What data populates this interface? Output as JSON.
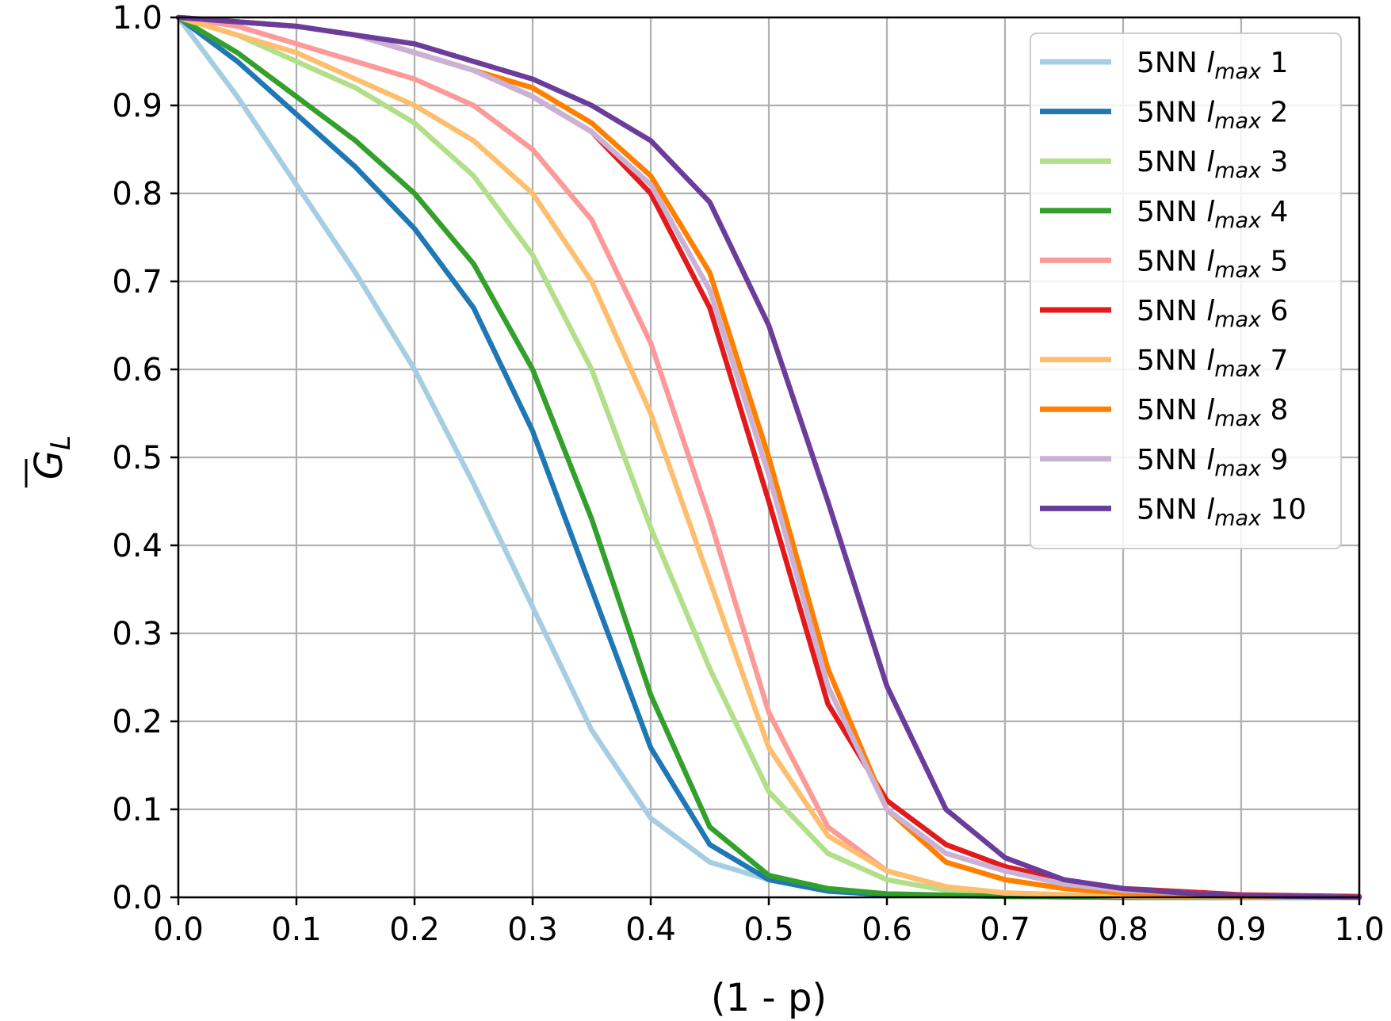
{
  "chart_data": {
    "type": "line",
    "xlabel": "(1 - p)",
    "ylabel_main": "G",
    "ylabel_sub": "L",
    "xlim": [
      0.0,
      1.0
    ],
    "ylim": [
      0.0,
      1.0
    ],
    "grid": true,
    "legend_position": "top-right",
    "x_ticks": [
      "0.0",
      "0.1",
      "0.2",
      "0.3",
      "0.4",
      "0.5",
      "0.6",
      "0.7",
      "0.8",
      "0.9",
      "1.0"
    ],
    "y_ticks": [
      "0.0",
      "0.1",
      "0.2",
      "0.3",
      "0.4",
      "0.5",
      "0.6",
      "0.7",
      "0.8",
      "0.9",
      "1.0"
    ],
    "series": [
      {
        "name_prefix": "5NN ",
        "name_main": "l",
        "name_sub": "max",
        "name_suffix": " 1",
        "color": "#a6cee3",
        "x": [
          0,
          0.05,
          0.1,
          0.15,
          0.2,
          0.25,
          0.3,
          0.35,
          0.4,
          0.45,
          0.5,
          0.55,
          0.6,
          0.7,
          0.8,
          1.0
        ],
        "y": [
          1.0,
          0.91,
          0.81,
          0.71,
          0.6,
          0.47,
          0.33,
          0.19,
          0.09,
          0.04,
          0.02,
          0.008,
          0.004,
          0.001,
          0.0,
          0.0
        ]
      },
      {
        "name_prefix": "5NN ",
        "name_main": "l",
        "name_sub": "max",
        "name_suffix": " 2",
        "color": "#1f78b4",
        "x": [
          0,
          0.05,
          0.1,
          0.15,
          0.2,
          0.25,
          0.3,
          0.35,
          0.4,
          0.45,
          0.5,
          0.55,
          0.6,
          0.7,
          0.8,
          1.0
        ],
        "y": [
          1.0,
          0.95,
          0.89,
          0.83,
          0.76,
          0.67,
          0.53,
          0.35,
          0.17,
          0.06,
          0.02,
          0.007,
          0.003,
          0.001,
          0.0,
          0.0
        ]
      },
      {
        "name_prefix": "5NN ",
        "name_main": "l",
        "name_sub": "max",
        "name_suffix": " 3",
        "color": "#b2df8a",
        "x": [
          0,
          0.05,
          0.1,
          0.15,
          0.2,
          0.25,
          0.3,
          0.35,
          0.4,
          0.45,
          0.5,
          0.55,
          0.6,
          0.65,
          0.7,
          0.8,
          1.0
        ],
        "y": [
          1.0,
          0.98,
          0.95,
          0.92,
          0.88,
          0.82,
          0.73,
          0.6,
          0.42,
          0.26,
          0.12,
          0.05,
          0.02,
          0.008,
          0.004,
          0.001,
          0.0
        ]
      },
      {
        "name_prefix": "5NN ",
        "name_main": "l",
        "name_sub": "max",
        "name_suffix": " 4",
        "color": "#33a02c",
        "x": [
          0,
          0.05,
          0.1,
          0.15,
          0.2,
          0.25,
          0.3,
          0.35,
          0.4,
          0.45,
          0.5,
          0.55,
          0.6,
          0.7,
          0.8,
          1.0
        ],
        "y": [
          1.0,
          0.96,
          0.91,
          0.86,
          0.8,
          0.72,
          0.6,
          0.43,
          0.23,
          0.08,
          0.025,
          0.01,
          0.004,
          0.001,
          0.0,
          0.0
        ]
      },
      {
        "name_prefix": "5NN ",
        "name_main": "l",
        "name_sub": "max",
        "name_suffix": " 5",
        "color": "#fb9a99",
        "x": [
          0,
          0.05,
          0.1,
          0.15,
          0.2,
          0.25,
          0.3,
          0.35,
          0.4,
          0.45,
          0.5,
          0.55,
          0.6,
          0.65,
          0.7,
          0.8,
          1.0
        ],
        "y": [
          1.0,
          0.99,
          0.97,
          0.95,
          0.93,
          0.9,
          0.85,
          0.77,
          0.63,
          0.43,
          0.21,
          0.08,
          0.03,
          0.012,
          0.005,
          0.001,
          0.0
        ]
      },
      {
        "name_prefix": "5NN ",
        "name_main": "l",
        "name_sub": "max",
        "name_suffix": " 6",
        "color": "#e31a1c",
        "x": [
          0,
          0.05,
          0.1,
          0.15,
          0.2,
          0.25,
          0.3,
          0.35,
          0.4,
          0.45,
          0.5,
          0.55,
          0.6,
          0.65,
          0.7,
          0.75,
          0.8,
          0.9,
          1.0
        ],
        "y": [
          1.0,
          0.995,
          0.99,
          0.98,
          0.96,
          0.94,
          0.91,
          0.87,
          0.8,
          0.67,
          0.45,
          0.22,
          0.11,
          0.06,
          0.035,
          0.02,
          0.01,
          0.003,
          0.001
        ]
      },
      {
        "name_prefix": "5NN ",
        "name_main": "l",
        "name_sub": "max",
        "name_suffix": " 7",
        "color": "#fdbf6f",
        "x": [
          0,
          0.05,
          0.1,
          0.15,
          0.2,
          0.25,
          0.3,
          0.35,
          0.4,
          0.45,
          0.5,
          0.55,
          0.6,
          0.65,
          0.7,
          0.8,
          1.0
        ],
        "y": [
          1.0,
          0.98,
          0.96,
          0.93,
          0.9,
          0.86,
          0.8,
          0.7,
          0.55,
          0.36,
          0.17,
          0.07,
          0.03,
          0.012,
          0.005,
          0.001,
          0.0
        ]
      },
      {
        "name_prefix": "5NN ",
        "name_main": "l",
        "name_sub": "max",
        "name_suffix": " 8",
        "color": "#ff7f00",
        "x": [
          0,
          0.05,
          0.1,
          0.15,
          0.2,
          0.25,
          0.3,
          0.35,
          0.4,
          0.45,
          0.5,
          0.55,
          0.6,
          0.65,
          0.7,
          0.75,
          0.8,
          0.9,
          1.0
        ],
        "y": [
          1.0,
          0.995,
          0.99,
          0.98,
          0.96,
          0.94,
          0.92,
          0.88,
          0.82,
          0.71,
          0.5,
          0.26,
          0.1,
          0.04,
          0.02,
          0.01,
          0.005,
          0.001,
          0.0
        ]
      },
      {
        "name_prefix": "5NN ",
        "name_main": "l",
        "name_sub": "max",
        "name_suffix": " 9",
        "color": "#cab2d6",
        "x": [
          0,
          0.05,
          0.1,
          0.15,
          0.2,
          0.25,
          0.3,
          0.35,
          0.4,
          0.45,
          0.5,
          0.55,
          0.6,
          0.65,
          0.7,
          0.75,
          0.8,
          0.9,
          1.0
        ],
        "y": [
          1.0,
          0.995,
          0.99,
          0.98,
          0.96,
          0.94,
          0.91,
          0.87,
          0.81,
          0.69,
          0.48,
          0.24,
          0.1,
          0.05,
          0.03,
          0.015,
          0.008,
          0.002,
          0.0
        ]
      },
      {
        "name_prefix": "5NN ",
        "name_main": "l",
        "name_sub": "max",
        "name_suffix": " 10",
        "color": "#6a3d9a",
        "x": [
          0,
          0.05,
          0.1,
          0.15,
          0.2,
          0.25,
          0.3,
          0.35,
          0.4,
          0.45,
          0.5,
          0.55,
          0.6,
          0.65,
          0.7,
          0.75,
          0.8,
          0.85,
          0.9,
          1.0
        ],
        "y": [
          1.0,
          0.995,
          0.99,
          0.98,
          0.97,
          0.95,
          0.93,
          0.9,
          0.86,
          0.79,
          0.65,
          0.45,
          0.24,
          0.1,
          0.045,
          0.02,
          0.01,
          0.005,
          0.002,
          0.0
        ]
      }
    ]
  }
}
